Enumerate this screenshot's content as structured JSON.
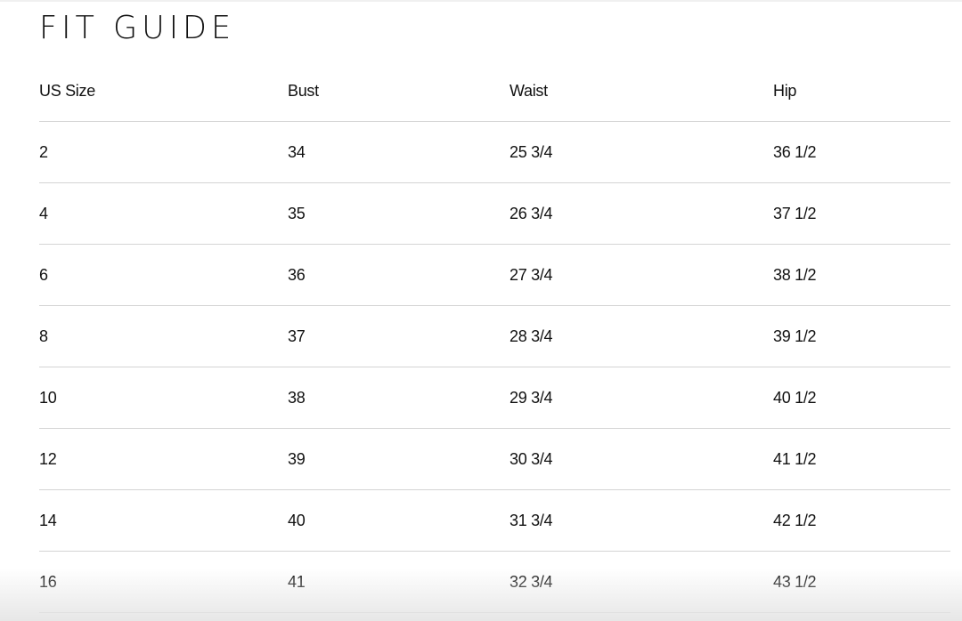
{
  "title": "FIT GUIDE",
  "headers": [
    "US Size",
    "Bust",
    "Waist",
    "Hip"
  ],
  "rows": [
    [
      "2",
      "34",
      "25 3/4",
      "36 1/2"
    ],
    [
      "4",
      "35",
      "26 3/4",
      "37 1/2"
    ],
    [
      "6",
      "36",
      "27 3/4",
      "38 1/2"
    ],
    [
      "8",
      "37",
      "28 3/4",
      "39 1/2"
    ],
    [
      "10",
      "38",
      "29 3/4",
      "40 1/2"
    ],
    [
      "12",
      "39",
      "30 3/4",
      "41 1/2"
    ],
    [
      "14",
      "40",
      "31 3/4",
      "42 1/2"
    ],
    [
      "16",
      "41",
      "32 3/4",
      "43 1/2"
    ]
  ]
}
